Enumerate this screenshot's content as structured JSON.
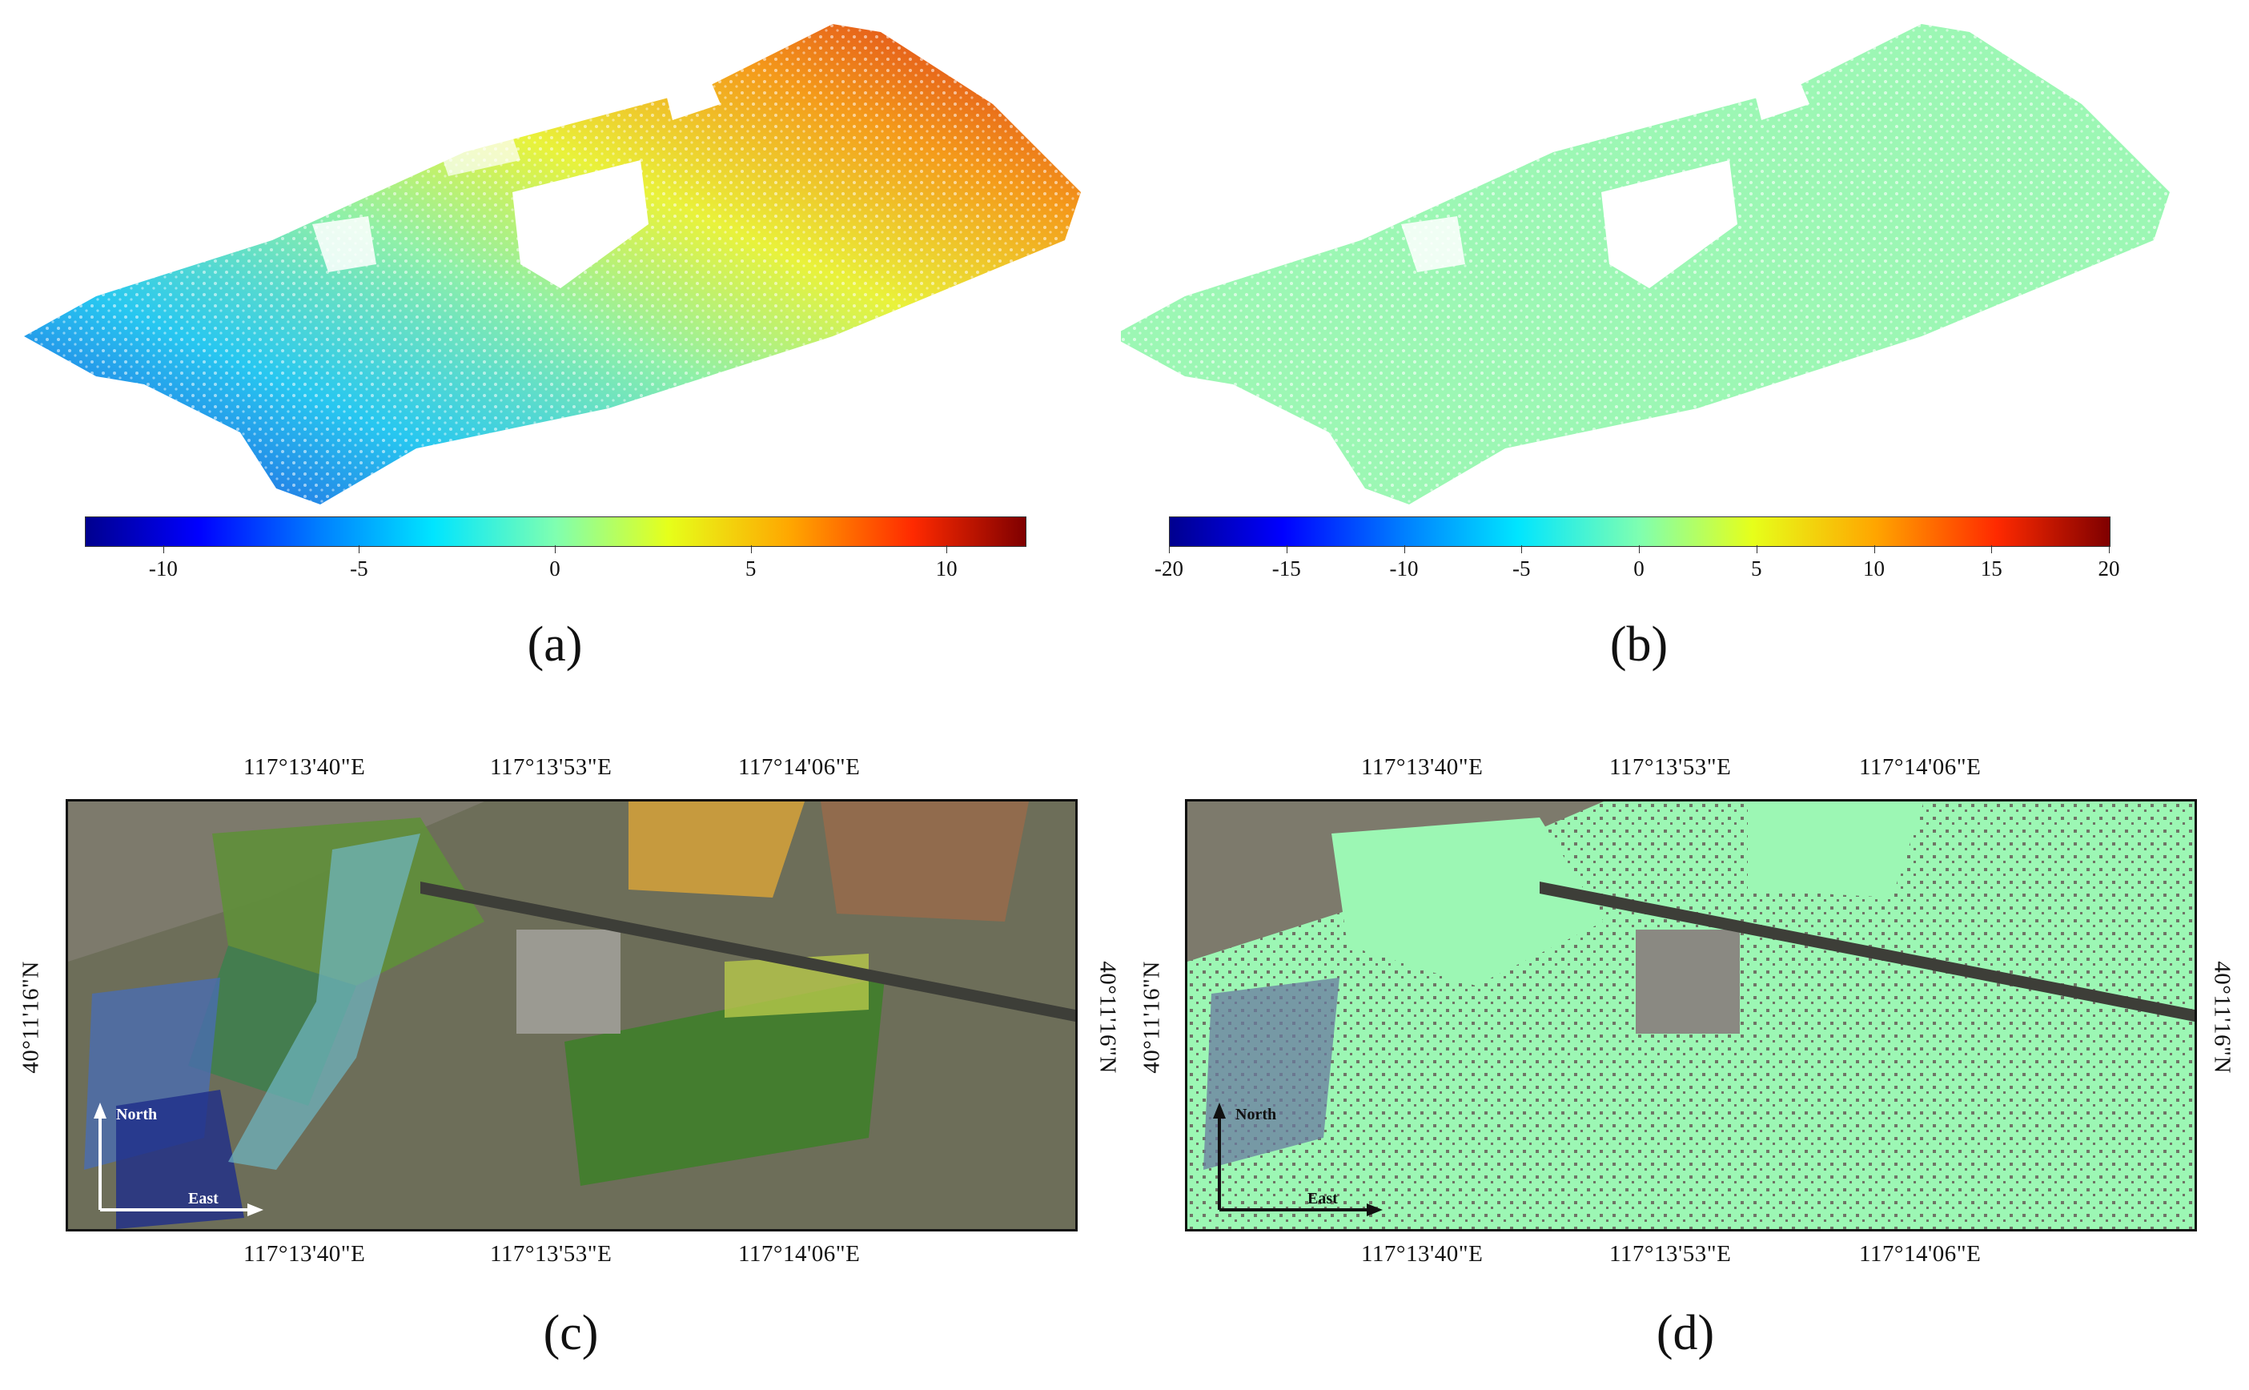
{
  "figure": {
    "panels": [
      {
        "id": "a",
        "label": "(a)",
        "description_kind": "point-cloud",
        "colorbar_ticks": [
          "-10",
          "-5",
          "0",
          "5",
          "10"
        ],
        "colorbar_range": [
          -12,
          12
        ]
      },
      {
        "id": "b",
        "label": "(b)",
        "description_kind": "point-cloud",
        "colorbar_ticks": [
          "-20",
          "-15",
          "-10",
          "-5",
          "0",
          "5",
          "10",
          "15",
          "20"
        ],
        "colorbar_range": [
          -20,
          20
        ]
      },
      {
        "id": "c",
        "label": "(c)",
        "top_coords": [
          "117°13'40\"E",
          "117°13'53\"E",
          "117°14'06\"E"
        ],
        "bottom_coords": [
          "117°13'40\"E",
          "117°13'53\"E",
          "117°14'06\"E"
        ],
        "left_coord": "40°11'16\"N",
        "right_coord": "40°11'16\"N",
        "north_label": "North",
        "east_label": "East"
      },
      {
        "id": "d",
        "label": "(d)",
        "top_coords": [
          "117°13'40\"E",
          "117°13'53\"E",
          "117°14'06\"E"
        ],
        "bottom_coords": [
          "117°13'40\"E",
          "117°13'53\"E",
          "117°14'06\"E"
        ],
        "left_coord": "40°11'16\"N",
        "right_coord": "40°11'16\"N",
        "north_label": "North",
        "east_label": "East"
      }
    ]
  },
  "colors": {
    "jet_low": "#00008b",
    "jet_mid": "#7fffb0",
    "jet_high": "#7f0000",
    "uniform_point": "#9cf7b4",
    "map_ground": "#7d7a6c"
  }
}
